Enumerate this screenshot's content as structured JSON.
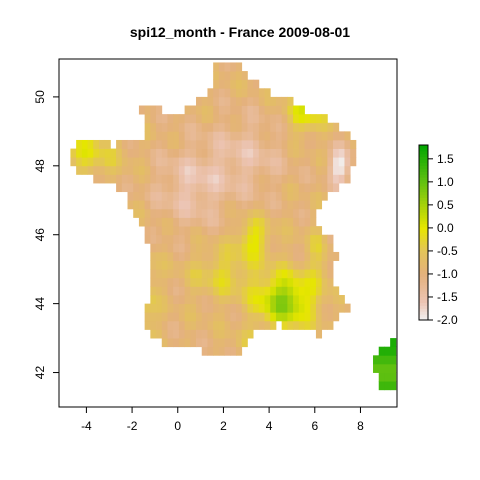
{
  "chart_data": {
    "type": "heatmap",
    "title": "spi12_month - France 2009-08-01",
    "xlabel": "",
    "ylabel": "",
    "xlim": [
      -5.2,
      9.6
    ],
    "ylim": [
      41.0,
      51.1
    ],
    "x_ticks": [
      "-4",
      "-2",
      "0",
      "2",
      "4",
      "6",
      "8"
    ],
    "x_tick_values": [
      -4,
      -2,
      0,
      2,
      4,
      6,
      8
    ],
    "y_ticks": [
      "42",
      "44",
      "46",
      "48",
      "50"
    ],
    "y_tick_values": [
      42,
      44,
      46,
      48,
      50
    ],
    "legend": {
      "position": "right",
      "range": [
        -2.0,
        1.8
      ],
      "tick_labels": [
        "1.5",
        "1.0",
        "0.5",
        "0.0",
        "-0.5",
        "-1.0",
        "-1.5",
        "-2.0"
      ],
      "tick_values": [
        1.5,
        1.0,
        0.5,
        0.0,
        -0.5,
        -1.0,
        -1.5,
        -2.0
      ],
      "color_stops": [
        {
          "value": -2.0,
          "color": "#f2f2f2"
        },
        {
          "value": -1.6,
          "color": "#ecc4b3"
        },
        {
          "value": -1.0,
          "color": "#e4b17c"
        },
        {
          "value": -0.5,
          "color": "#e3c45a"
        },
        {
          "value": 0.0,
          "color": "#e6e600"
        },
        {
          "value": 0.5,
          "color": "#a6d20a"
        },
        {
          "value": 1.0,
          "color": "#63c111"
        },
        {
          "value": 1.8,
          "color": "#00a600"
        }
      ]
    },
    "grid_resolution_deg": 0.25,
    "region": "France",
    "date": "2009-08-01",
    "variable": "spi12_month"
  }
}
